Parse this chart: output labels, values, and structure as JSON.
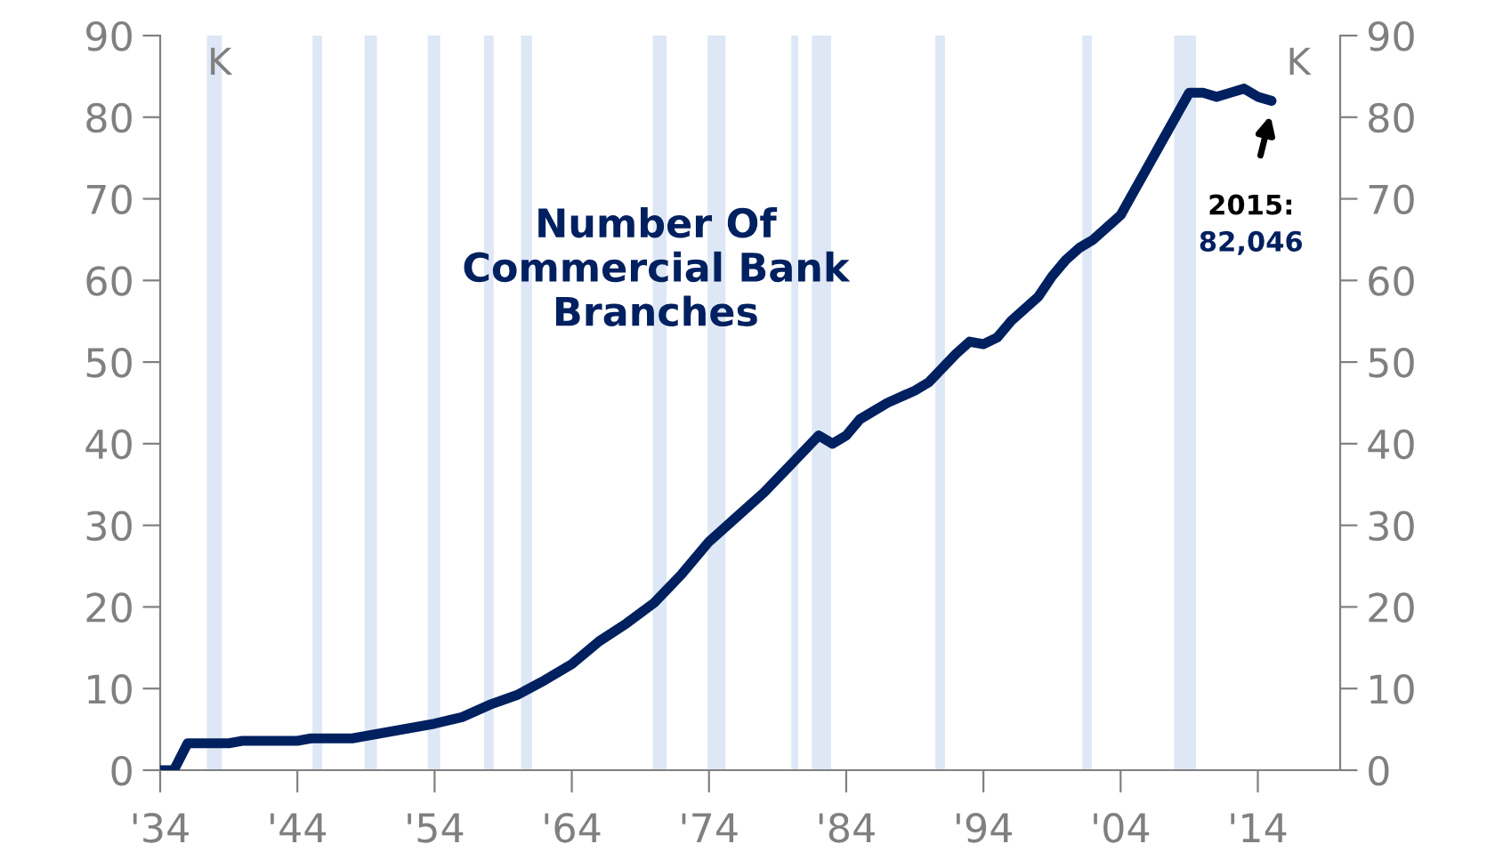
{
  "chart_data": {
    "type": "line",
    "title": "Number Of\nCommercial Bank\nBranches",
    "ylabel": "K",
    "y2label": "K",
    "x": [
      1934,
      1935,
      1936,
      1939,
      1940,
      1944,
      1945,
      1948,
      1950,
      1952,
      1954,
      1956,
      1958,
      1960,
      1962,
      1964,
      1966,
      1968,
      1970,
      1972,
      1974,
      1976,
      1978,
      1980,
      1982,
      1983,
      1984,
      1985,
      1987,
      1989,
      1990,
      1992,
      1993,
      1994,
      1995,
      1996,
      1998,
      1999,
      2000,
      2001,
      2002,
      2003,
      2004,
      2005,
      2006,
      2007,
      2008,
      2009,
      2010,
      2011,
      2012,
      2013,
      2014,
      2015
    ],
    "series": [
      {
        "color": "#002060",
        "values": [
          0,
          0,
          3.3,
          3.3,
          3.6,
          3.6,
          3.9,
          3.9,
          4.5,
          5.1,
          5.7,
          6.5,
          8,
          9.2,
          11,
          13,
          15.8,
          18,
          20.5,
          24,
          28,
          31,
          34,
          37.5,
          41,
          40,
          41,
          43,
          45,
          46.5,
          47.5,
          51,
          52.5,
          52.2,
          53,
          55,
          58,
          60.5,
          62.5,
          64,
          65,
          66.5,
          68,
          71,
          74,
          77,
          80,
          83,
          83,
          82.5,
          83,
          83.5,
          82.5,
          82
        ]
      }
    ],
    "xlim": [
      1934,
      2020
    ],
    "xticks": [
      {
        "value": 1934,
        "label": "'34"
      },
      {
        "value": 1944,
        "label": "'44"
      },
      {
        "value": 1954,
        "label": "'54"
      },
      {
        "value": 1964,
        "label": "'64"
      },
      {
        "value": 1974,
        "label": "'74"
      },
      {
        "value": 1984,
        "label": "'84"
      },
      {
        "value": 1994,
        "label": "'94"
      },
      {
        "value": 2004,
        "label": "'04"
      },
      {
        "value": 2014,
        "label": "'14"
      }
    ],
    "ylim": [
      0,
      90
    ],
    "yticks": [
      0,
      10,
      20,
      30,
      40,
      50,
      60,
      70,
      80,
      90
    ],
    "y2lim": [
      0,
      90
    ],
    "y2ticks": [
      0,
      10,
      20,
      30,
      40,
      50,
      60,
      70,
      80,
      90
    ],
    "bands": [
      {
        "axis": "x",
        "from": 1937.4,
        "to": 1938.5,
        "color": "#dde7f5"
      },
      {
        "axis": "x",
        "from": 1945.1,
        "to": 1945.8,
        "color": "#dde7f5"
      },
      {
        "axis": "x",
        "from": 1948.9,
        "to": 1949.8,
        "color": "#dde7f5"
      },
      {
        "axis": "x",
        "from": 1953.5,
        "to": 1954.4,
        "color": "#dde7f5"
      },
      {
        "axis": "x",
        "from": 1957.6,
        "to": 1958.3,
        "color": "#dde7f5"
      },
      {
        "axis": "x",
        "from": 1960.3,
        "to": 1961.1,
        "color": "#dde7f5"
      },
      {
        "axis": "x",
        "from": 1969.9,
        "to": 1970.9,
        "color": "#dde7f5"
      },
      {
        "axis": "x",
        "from": 1973.9,
        "to": 1975.2,
        "color": "#dde7f5"
      },
      {
        "axis": "x",
        "from": 1980.0,
        "to": 1980.5,
        "color": "#dde7f5"
      },
      {
        "axis": "x",
        "from": 1981.5,
        "to": 1982.9,
        "color": "#dde7f5"
      },
      {
        "axis": "x",
        "from": 1990.5,
        "to": 1991.2,
        "color": "#dde7f5"
      },
      {
        "axis": "x",
        "from": 2001.2,
        "to": 2001.9,
        "color": "#dde7f5"
      },
      {
        "axis": "x",
        "from": 2007.9,
        "to": 2009.5,
        "color": "#dde7f5"
      }
    ],
    "annotations": [
      "2015:\n82,046"
    ],
    "grid": false,
    "marker": "none",
    "line_style": "solid"
  }
}
